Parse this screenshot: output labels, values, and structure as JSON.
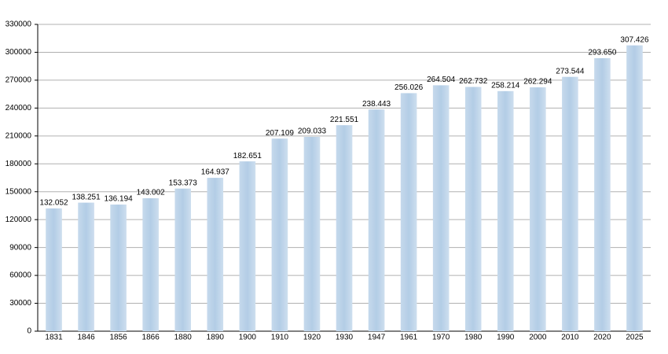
{
  "chart_data": {
    "type": "bar",
    "categories": [
      "1831",
      "1846",
      "1856",
      "1866",
      "1880",
      "1890",
      "1900",
      "1910",
      "1920",
      "1930",
      "1947",
      "1961",
      "1970",
      "1980",
      "1990",
      "2000",
      "2010",
      "2020",
      "2025"
    ],
    "values": [
      132052,
      138251,
      136194,
      143002,
      153373,
      164937,
      182651,
      207109,
      209033,
      221551,
      238443,
      256026,
      264504,
      262732,
      258214,
      262294,
      273544,
      293650,
      307426
    ],
    "value_labels": [
      "132.052",
      "138.251",
      "136.194",
      "143.002",
      "153.373",
      "164.937",
      "182.651",
      "207.109",
      "209.033",
      "221.551",
      "238.443",
      "256.026",
      "264.504",
      "262.732",
      "258.214",
      "262.294",
      "273.544",
      "293.650",
      "307.426"
    ],
    "color": "#b3cde6",
    "ylim": [
      0,
      330000
    ],
    "yticks": [
      0,
      30000,
      60000,
      90000,
      120000,
      150000,
      180000,
      210000,
      240000,
      270000,
      300000,
      330000
    ],
    "grid": true
  }
}
